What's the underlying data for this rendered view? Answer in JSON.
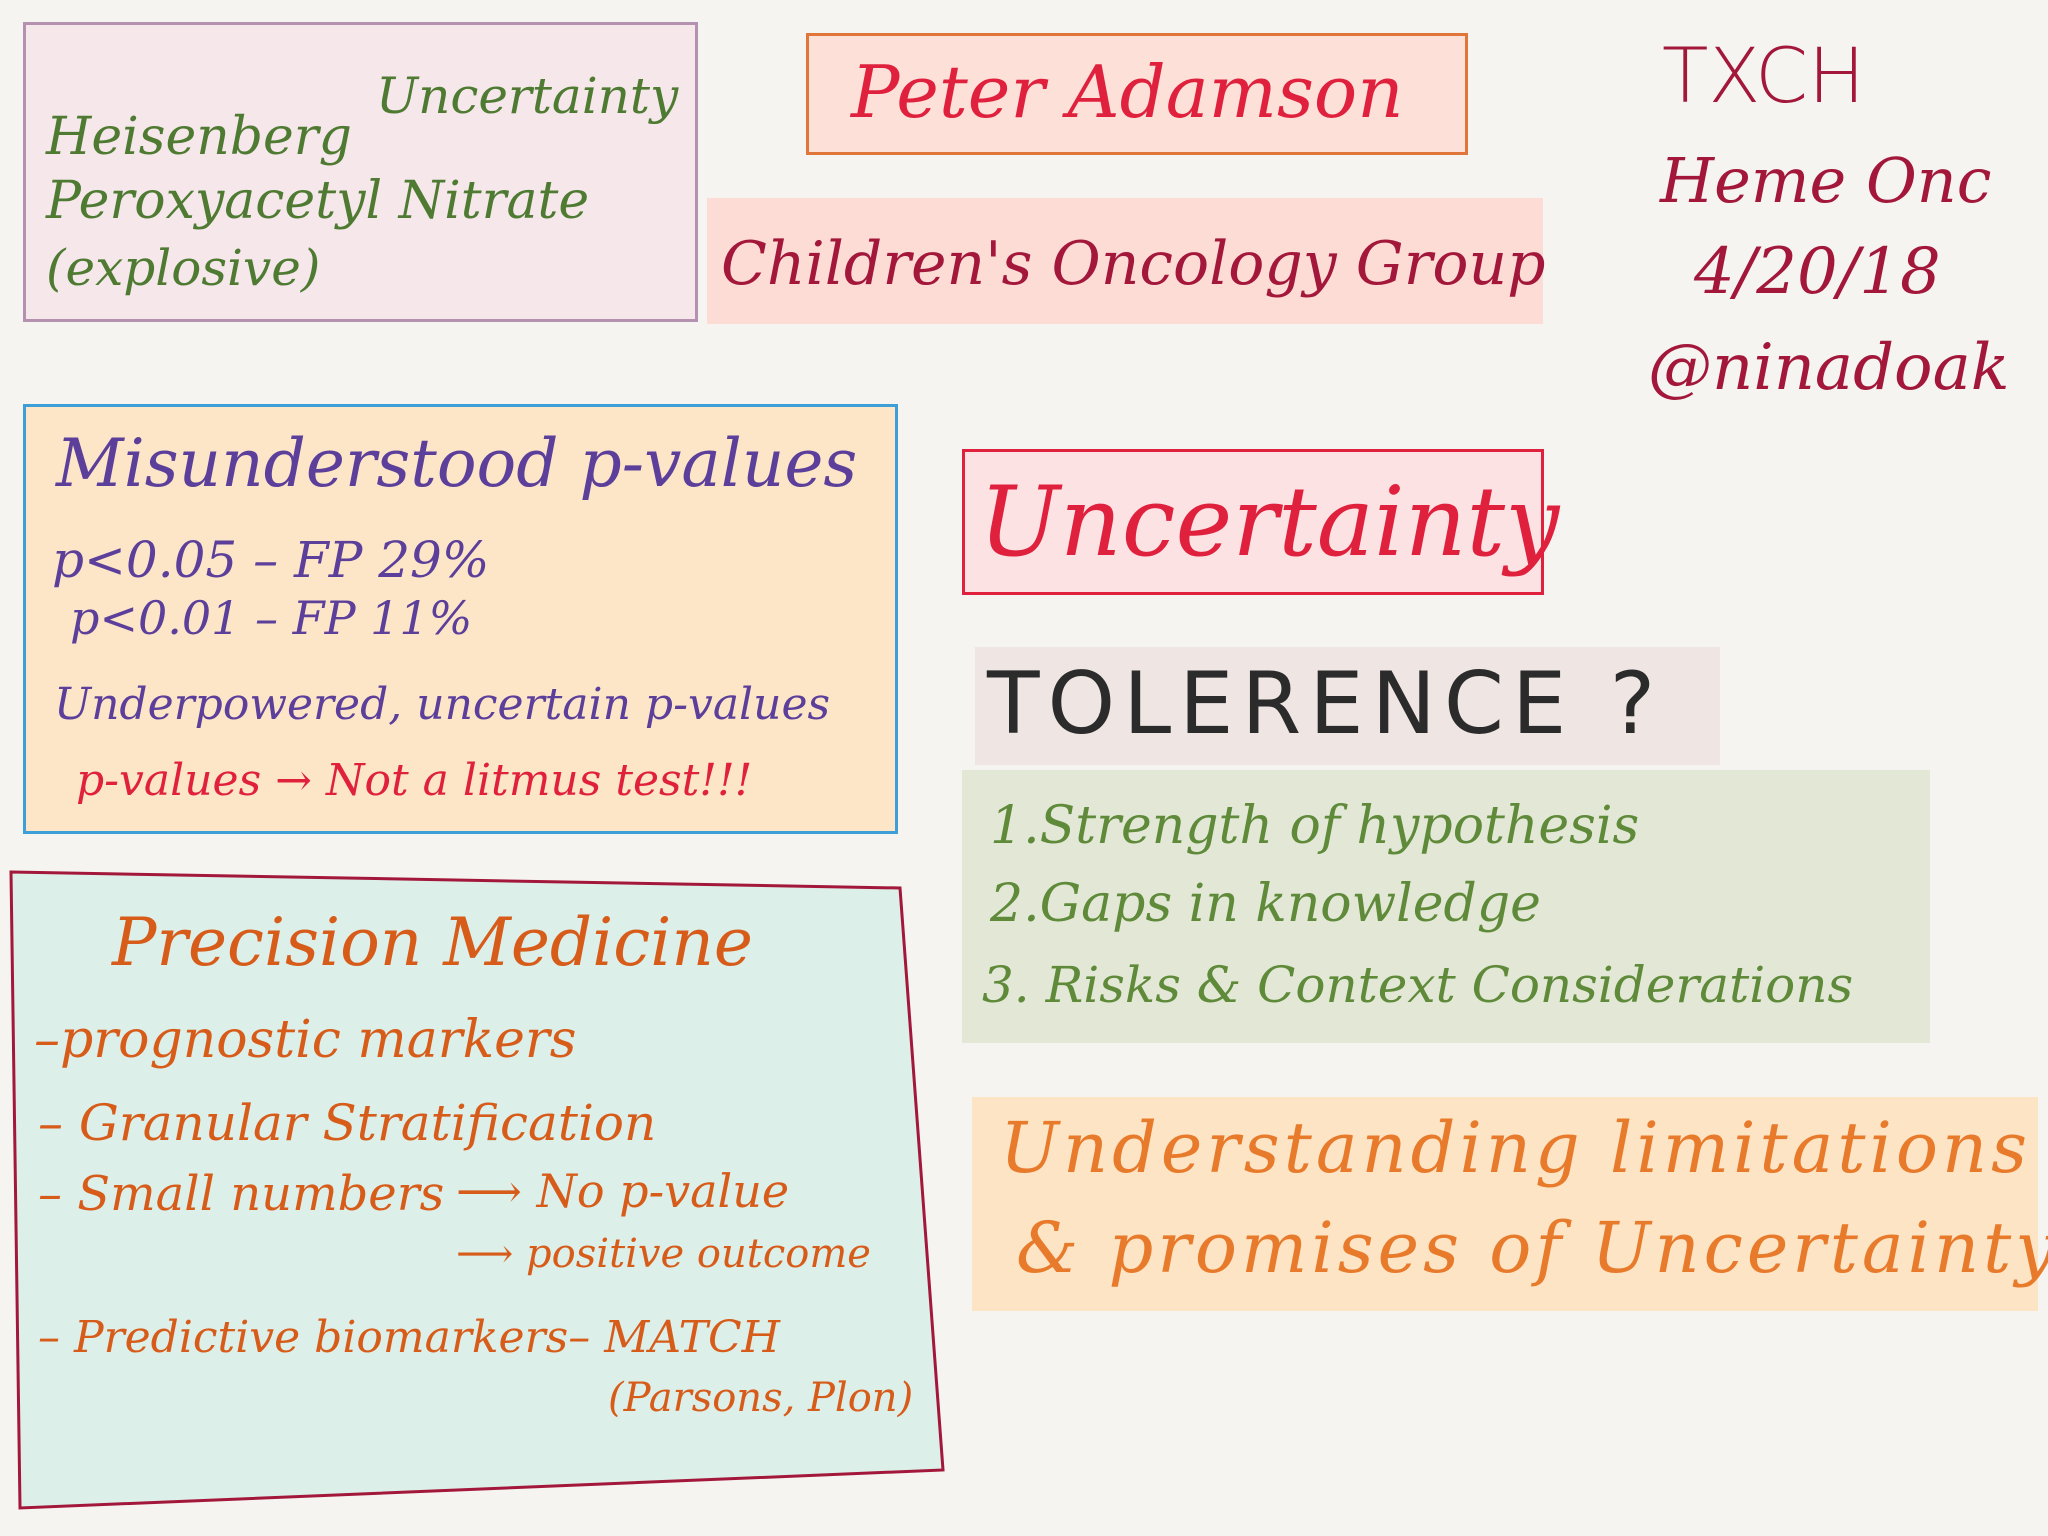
{
  "heisenberg": {
    "line1a": "Heisenberg",
    "line1b": "Uncertainty",
    "line2": "Peroxyacetyl Nitrate",
    "line3": "(explosive)"
  },
  "speaker": {
    "name": "Peter Adamson",
    "organization": "Children's Oncology Group"
  },
  "event": {
    "venue": "TXCH",
    "department": "Heme Onc",
    "date": "4/20/18",
    "handle": "@ninadoak"
  },
  "pvalues": {
    "title": "Misunderstood p-values",
    "line1": "p<0.05 – FP 29%",
    "line2": "p<0.01 – FP 11%",
    "line3": "Underpowered, uncertain p-values",
    "line4": "p-values → Not a litmus test!!!"
  },
  "precision": {
    "title": "Precision Medicine",
    "item1": "–prognostic markers",
    "item2": "– Granular Stratification",
    "item3a": "– Small numbers",
    "item3b": "⟶ No p-value",
    "item3c": "⟶ positive outcome",
    "item4": "– Predictive biomarkers– MATCH",
    "item4b": "(Parsons, Plon)"
  },
  "uncertainty": {
    "title": "Uncertainty"
  },
  "tolerence": {
    "title": "TOLERENCE ?",
    "items": [
      "1.Strength of hypothesis",
      "2.Gaps in knowledge",
      "3. Risks & Context Considerations"
    ]
  },
  "understanding": {
    "line1": "Understanding limitations",
    "line2": "& promises of Uncertainty"
  },
  "colors": {
    "background": "#f5f4f0",
    "accent_red": "#e0213e",
    "accent_orange": "#d75c1a",
    "accent_maroon": "#a3173b"
  }
}
